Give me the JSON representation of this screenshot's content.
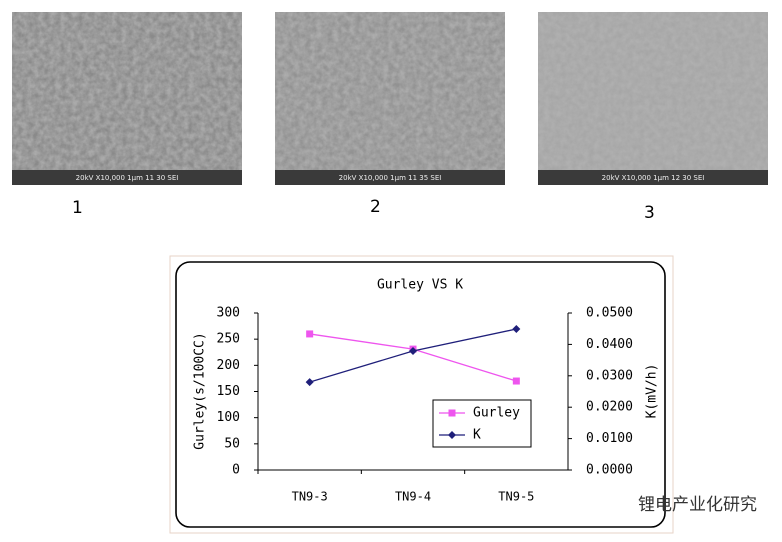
{
  "figures": [
    {
      "label": "1",
      "caption": "20kV X10,000 1μm 11 30 SEI"
    },
    {
      "label": "2",
      "caption": "20kV X10,000 1μm 11 35 SEI"
    },
    {
      "label": "3",
      "caption": "20kV X10,000 1μm 12 30 SEI"
    }
  ],
  "watermark": "锂电产业化研究",
  "chart_data": {
    "type": "line",
    "title": "Gurley VS K",
    "categories": [
      "TN9-3",
      "TN9-4",
      "TN9-5"
    ],
    "series": [
      {
        "name": "Gurley",
        "color": "#ee55ee",
        "marker": "square",
        "values": [
          260,
          231,
          170
        ]
      },
      {
        "name": "K",
        "color": "#1f1f7a",
        "marker": "diamond",
        "axis": "y2",
        "values": [
          0.028,
          0.0379,
          0.0449
        ]
      }
    ],
    "ylabel": "Gurley(s/100CC)",
    "y2label": "K(mV/h)",
    "ylim": [
      0,
      300
    ],
    "yticks": [
      0,
      50,
      100,
      150,
      200,
      250,
      300
    ],
    "y2lim": [
      0,
      0.05
    ],
    "y2ticks": [
      {
        "value": 0,
        "label": "0.0000"
      },
      {
        "value": 0.01,
        "label": "0.0100"
      },
      {
        "value": 0.02,
        "label": "0.0200"
      },
      {
        "value": 0.03,
        "label": "0.0300"
      },
      {
        "value": 0.04,
        "label": "0.0400"
      },
      {
        "value": 0.05,
        "label": "0.0500"
      }
    ],
    "legend": "right"
  }
}
